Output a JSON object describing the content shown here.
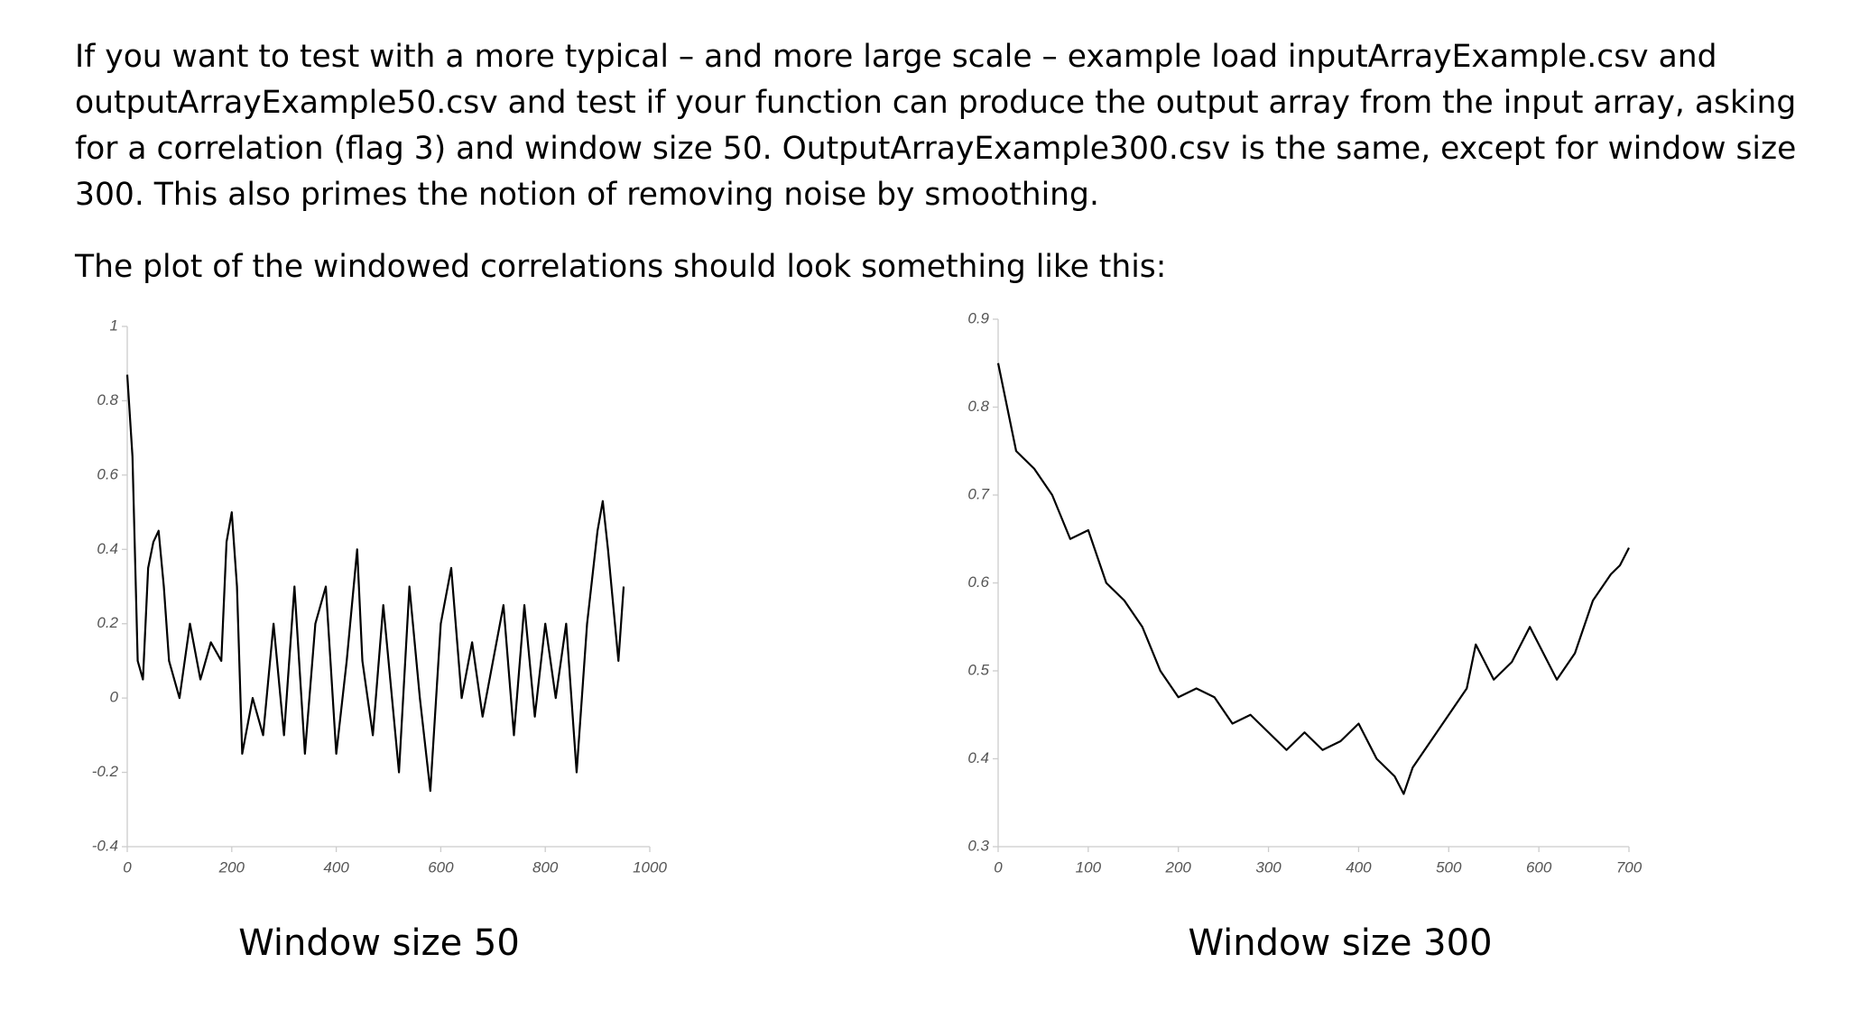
{
  "paragraphs": [
    "If you want to test with a more typical – and more large scale – example load inputArrayExample.csv and outputArrayExample50.csv and test if your function can produce the output array from the input array, asking for a correlation (flag 3) and window size 50. OutputArrayExample300.csv is the same, except for window size 300. This also primes the notion of removing noise by smoothing.",
    "The plot of the windowed correlations should look something like this:"
  ],
  "chart_data": [
    {
      "type": "line",
      "caption": "Window size 50",
      "x": [
        0,
        10,
        20,
        30,
        40,
        50,
        60,
        70,
        80,
        100,
        120,
        140,
        160,
        180,
        190,
        200,
        210,
        220,
        240,
        260,
        280,
        300,
        320,
        340,
        360,
        380,
        400,
        420,
        440,
        450,
        470,
        490,
        500,
        520,
        540,
        560,
        580,
        600,
        620,
        640,
        660,
        680,
        700,
        720,
        740,
        760,
        780,
        800,
        820,
        840,
        860,
        880,
        900,
        910,
        920,
        940,
        950
      ],
      "series": [
        {
          "color": "#000000",
          "values": [
            0.87,
            0.65,
            0.1,
            0.05,
            0.35,
            0.42,
            0.45,
            0.3,
            0.1,
            0.0,
            0.2,
            0.05,
            0.15,
            0.1,
            0.42,
            0.5,
            0.3,
            -0.15,
            0.0,
            -0.1,
            0.2,
            -0.1,
            0.3,
            -0.15,
            0.2,
            0.3,
            -0.15,
            0.1,
            0.4,
            0.1,
            -0.1,
            0.25,
            0.1,
            -0.2,
            0.3,
            0.0,
            -0.25,
            0.2,
            0.35,
            0.0,
            0.15,
            -0.05,
            0.1,
            0.25,
            -0.1,
            0.25,
            -0.05,
            0.2,
            0.0,
            0.2,
            -0.2,
            0.2,
            0.45,
            0.53,
            0.4,
            0.1,
            0.3
          ]
        }
      ],
      "xlim": [
        0,
        1000
      ],
      "xticks": [
        0,
        200,
        400,
        600,
        800,
        1000
      ],
      "ylim": [
        -0.4,
        1
      ],
      "yticks": [
        -0.4,
        -0.2,
        0,
        0.2,
        0.4,
        0.6,
        0.8,
        1
      ]
    },
    {
      "type": "line",
      "caption": "Window size 300",
      "x": [
        0,
        10,
        20,
        40,
        60,
        80,
        100,
        120,
        140,
        160,
        180,
        200,
        220,
        240,
        260,
        280,
        300,
        320,
        340,
        360,
        380,
        400,
        420,
        440,
        450,
        460,
        480,
        500,
        520,
        530,
        550,
        570,
        590,
        610,
        620,
        640,
        660,
        680,
        690,
        700
      ],
      "series": [
        {
          "color": "#000000",
          "values": [
            0.85,
            0.8,
            0.75,
            0.73,
            0.7,
            0.65,
            0.66,
            0.6,
            0.58,
            0.55,
            0.5,
            0.47,
            0.48,
            0.47,
            0.44,
            0.45,
            0.43,
            0.41,
            0.43,
            0.41,
            0.42,
            0.44,
            0.4,
            0.38,
            0.36,
            0.39,
            0.42,
            0.45,
            0.48,
            0.53,
            0.49,
            0.51,
            0.55,
            0.51,
            0.49,
            0.52,
            0.58,
            0.61,
            0.62,
            0.64
          ]
        }
      ],
      "xlim": [
        0,
        700
      ],
      "xticks": [
        0,
        100,
        200,
        300,
        400,
        500,
        600,
        700
      ],
      "ylim": [
        0.3,
        0.9
      ],
      "yticks": [
        0.3,
        0.4,
        0.5,
        0.6,
        0.7,
        0.8,
        0.9
      ]
    }
  ]
}
